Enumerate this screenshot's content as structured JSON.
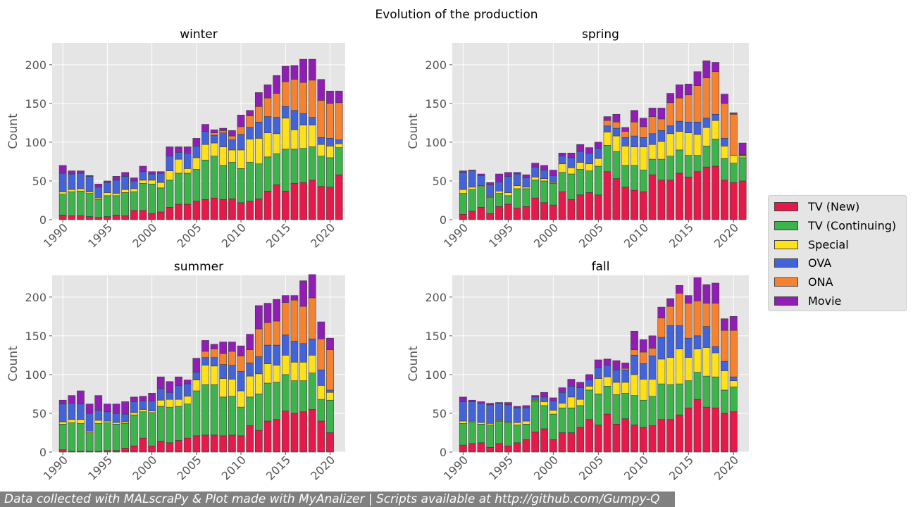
{
  "figure": {
    "title": "Evolution of the production",
    "footer": "Data collected with MALscraPy & Plot made with MyAnalizer | Scripts available at http://github.com/Gumpy-Q"
  },
  "series_meta": [
    {
      "name": "TV (New)",
      "color": "#e6194b"
    },
    {
      "name": "TV (Continuing)",
      "color": "#3cb44b"
    },
    {
      "name": "Special",
      "color": "#ffe119"
    },
    {
      "name": "OVA",
      "color": "#4363d8"
    },
    {
      "name": "ONA",
      "color": "#f58231"
    },
    {
      "name": "Movie",
      "color": "#911eb4"
    }
  ],
  "chart_data": [
    {
      "type": "bar",
      "stacked": true,
      "title": "winter",
      "xlabel": "",
      "ylabel": "Count",
      "ylim": [
        0,
        228
      ],
      "xlim": [
        1988.8,
        2021.7
      ],
      "xticks": [
        1990,
        1995,
        2000,
        2005,
        2010,
        2015,
        2020
      ],
      "yticks": [
        0,
        50,
        100,
        150,
        200
      ],
      "grid": true,
      "x": [
        1990,
        1991,
        1992,
        1993,
        1994,
        1995,
        1996,
        1997,
        1998,
        1999,
        2000,
        2001,
        2002,
        2003,
        2004,
        2005,
        2006,
        2007,
        2008,
        2009,
        2010,
        2011,
        2012,
        2013,
        2014,
        2015,
        2016,
        2017,
        2018,
        2019,
        2020,
        2021
      ],
      "series": [
        {
          "name": "TV (New)",
          "values": [
            6,
            5,
            5,
            4,
            3,
            4,
            6,
            5,
            12,
            12,
            8,
            10,
            16,
            20,
            20,
            24,
            26,
            28,
            26,
            27,
            22,
            24,
            27,
            37,
            45,
            37,
            47,
            48,
            51,
            43,
            42,
            58
          ]
        },
        {
          "name": "TV (Continuing)",
          "values": [
            27,
            31,
            32,
            30,
            23,
            27,
            25,
            30,
            24,
            35,
            38,
            31,
            35,
            40,
            40,
            41,
            51,
            54,
            44,
            47,
            44,
            50,
            45,
            44,
            40,
            54,
            44,
            44,
            43,
            39,
            38,
            35
          ]
        },
        {
          "name": "Special",
          "values": [
            3,
            3,
            3,
            2,
            2,
            4,
            3,
            4,
            4,
            4,
            5,
            7,
            12,
            18,
            6,
            15,
            20,
            17,
            24,
            16,
            24,
            30,
            33,
            31,
            26,
            40,
            25,
            30,
            28,
            15,
            15,
            5
          ]
        },
        {
          "name": "OVA",
          "values": [
            24,
            20,
            20,
            20,
            14,
            13,
            17,
            17,
            10,
            11,
            8,
            12,
            19,
            9,
            20,
            15,
            17,
            10,
            18,
            13,
            20,
            15,
            21,
            21,
            21,
            15,
            25,
            15,
            10,
            9,
            10,
            5
          ]
        },
        {
          "name": "ONA",
          "values": [
            0,
            0,
            0,
            0,
            0,
            0,
            0,
            0,
            0,
            0,
            0,
            0,
            0,
            0,
            0,
            0,
            0,
            3,
            3,
            5,
            10,
            15,
            20,
            24,
            31,
            32,
            40,
            40,
            48,
            48,
            45,
            48
          ]
        },
        {
          "name": "Movie",
          "values": [
            10,
            4,
            3,
            1,
            4,
            2,
            5,
            5,
            4,
            7,
            3,
            2,
            12,
            7,
            8,
            10,
            9,
            4,
            3,
            7,
            15,
            7,
            18,
            17,
            23,
            20,
            18,
            30,
            27,
            27,
            16,
            15
          ]
        }
      ]
    },
    {
      "type": "bar",
      "stacked": true,
      "title": "spring",
      "xlabel": "",
      "ylabel": "Count",
      "ylim": [
        0,
        228
      ],
      "xlim": [
        1988.8,
        2021.7
      ],
      "xticks": [
        1990,
        1995,
        2000,
        2005,
        2010,
        2015,
        2020
      ],
      "yticks": [
        0,
        50,
        100,
        150,
        200
      ],
      "grid": true,
      "x": [
        1990,
        1991,
        1992,
        1993,
        1994,
        1995,
        1996,
        1997,
        1998,
        1999,
        2000,
        2001,
        2002,
        2003,
        2004,
        2005,
        2006,
        2007,
        2008,
        2009,
        2010,
        2011,
        2012,
        2013,
        2014,
        2015,
        2016,
        2017,
        2018,
        2019,
        2020,
        2021
      ],
      "series": [
        {
          "name": "TV (New)",
          "values": [
            7,
            11,
            16,
            8,
            17,
            20,
            15,
            17,
            28,
            22,
            19,
            36,
            26,
            32,
            35,
            32,
            62,
            53,
            42,
            38,
            36,
            58,
            51,
            51,
            60,
            55,
            62,
            68,
            69,
            51,
            48,
            50
          ]
        },
        {
          "name": "TV (Continuing)",
          "values": [
            27,
            28,
            27,
            21,
            17,
            11,
            25,
            23,
            23,
            28,
            28,
            25,
            33,
            33,
            28,
            37,
            34,
            35,
            28,
            32,
            28,
            20,
            27,
            31,
            30,
            28,
            21,
            27,
            35,
            28,
            25,
            30
          ]
        },
        {
          "name": "Special",
          "values": [
            5,
            3,
            1,
            1,
            3,
            4,
            4,
            2,
            4,
            3,
            1,
            11,
            8,
            9,
            9,
            10,
            17,
            20,
            25,
            24,
            30,
            19,
            23,
            29,
            24,
            29,
            27,
            24,
            24,
            16,
            10,
            2
          ]
        },
        {
          "name": "OVA",
          "values": [
            22,
            21,
            13,
            15,
            12,
            21,
            15,
            12,
            13,
            11,
            9,
            10,
            13,
            14,
            14,
            13,
            8,
            10,
            11,
            14,
            12,
            14,
            14,
            10,
            13,
            14,
            16,
            12,
            8,
            10,
            0,
            2
          ]
        },
        {
          "name": "ONA",
          "values": [
            0,
            0,
            0,
            0,
            0,
            0,
            0,
            0,
            0,
            0,
            0,
            0,
            0,
            0,
            0,
            0,
            7,
            8,
            8,
            18,
            14,
            22,
            15,
            30,
            30,
            35,
            47,
            52,
            55,
            45,
            53,
            0
          ]
        },
        {
          "name": "Movie",
          "values": [
            2,
            1,
            2,
            3,
            10,
            5,
            2,
            4,
            5,
            6,
            7,
            4,
            6,
            9,
            7,
            8,
            5,
            10,
            5,
            15,
            11,
            11,
            14,
            12,
            17,
            14,
            18,
            22,
            12,
            12,
            2,
            15
          ]
        }
      ]
    },
    {
      "type": "bar",
      "stacked": true,
      "title": "summer",
      "xlabel": "",
      "ylabel": "Count",
      "ylim": [
        0,
        228
      ],
      "xlim": [
        1988.8,
        2021.7
      ],
      "xticks": [
        1990,
        1995,
        2000,
        2005,
        2010,
        2015,
        2020
      ],
      "yticks": [
        0,
        50,
        100,
        150,
        200
      ],
      "grid": true,
      "x": [
        1990,
        1991,
        1992,
        1993,
        1994,
        1995,
        1996,
        1997,
        1998,
        1999,
        2000,
        2001,
        2002,
        2003,
        2004,
        2005,
        2006,
        2007,
        2008,
        2009,
        2010,
        2011,
        2012,
        2013,
        2014,
        2015,
        2016,
        2017,
        2018,
        2019,
        2020,
        2021
      ],
      "series": [
        {
          "name": "TV (New)",
          "values": [
            3,
            1,
            1,
            1,
            1,
            2,
            2,
            5,
            8,
            18,
            8,
            14,
            12,
            15,
            18,
            21,
            22,
            22,
            21,
            22,
            21,
            34,
            28,
            40,
            42,
            53,
            50,
            52,
            55,
            40,
            25,
            0
          ]
        },
        {
          "name": "TV (Continuing)",
          "values": [
            33,
            37,
            36,
            24,
            36,
            36,
            34,
            32,
            40,
            34,
            43,
            45,
            46,
            44,
            44,
            58,
            65,
            65,
            50,
            50,
            37,
            37,
            47,
            49,
            48,
            47,
            42,
            40,
            47,
            28,
            42,
            0
          ]
        },
        {
          "name": "Special",
          "values": [
            3,
            4,
            5,
            2,
            4,
            2,
            2,
            2,
            3,
            3,
            2,
            8,
            10,
            9,
            10,
            14,
            25,
            24,
            24,
            22,
            21,
            27,
            26,
            25,
            22,
            25,
            24,
            24,
            23,
            18,
            10,
            0
          ]
        },
        {
          "name": "OVA",
          "values": [
            23,
            21,
            20,
            23,
            13,
            12,
            12,
            10,
            14,
            11,
            13,
            15,
            9,
            18,
            16,
            10,
            10,
            11,
            18,
            18,
            25,
            17,
            22,
            24,
            26,
            26,
            27,
            24,
            21,
            20,
            3,
            0
          ]
        },
        {
          "name": "ONA",
          "values": [
            0,
            0,
            0,
            0,
            0,
            0,
            0,
            0,
            0,
            0,
            0,
            0,
            0,
            0,
            0,
            0,
            8,
            11,
            14,
            18,
            20,
            17,
            36,
            29,
            31,
            42,
            53,
            48,
            53,
            40,
            52,
            0
          ]
        },
        {
          "name": "Movie",
          "values": [
            5,
            10,
            17,
            12,
            19,
            10,
            12,
            16,
            6,
            6,
            10,
            15,
            14,
            11,
            5,
            18,
            14,
            6,
            15,
            12,
            13,
            20,
            30,
            25,
            28,
            9,
            6,
            33,
            30,
            22,
            15,
            0
          ]
        }
      ]
    },
    {
      "type": "bar",
      "stacked": true,
      "title": "fall",
      "xlabel": "",
      "ylabel": "Count",
      "ylim": [
        0,
        228
      ],
      "xlim": [
        1988.8,
        2021.7
      ],
      "xticks": [
        1990,
        1995,
        2000,
        2005,
        2010,
        2015,
        2020
      ],
      "yticks": [
        0,
        50,
        100,
        150,
        200
      ],
      "grid": true,
      "x": [
        1990,
        1991,
        1992,
        1993,
        1994,
        1995,
        1996,
        1997,
        1998,
        1999,
        2000,
        2001,
        2002,
        2003,
        2004,
        2005,
        2006,
        2007,
        2008,
        2009,
        2010,
        2011,
        2012,
        2013,
        2014,
        2015,
        2016,
        2017,
        2018,
        2019,
        2020,
        2021
      ],
      "series": [
        {
          "name": "TV (New)",
          "values": [
            9,
            11,
            12,
            6,
            11,
            8,
            12,
            16,
            26,
            30,
            16,
            25,
            25,
            32,
            42,
            35,
            49,
            36,
            43,
            35,
            32,
            34,
            42,
            42,
            48,
            57,
            68,
            58,
            57,
            50,
            52,
            0
          ]
        },
        {
          "name": "TV (Continuing)",
          "values": [
            28,
            28,
            24,
            29,
            29,
            30,
            23,
            20,
            40,
            30,
            33,
            32,
            32,
            28,
            38,
            40,
            36,
            38,
            33,
            38,
            35,
            38,
            46,
            45,
            40,
            35,
            35,
            40,
            40,
            30,
            32,
            0
          ]
        },
        {
          "name": "Special",
          "values": [
            3,
            1,
            2,
            2,
            1,
            1,
            3,
            4,
            1,
            5,
            5,
            6,
            14,
            8,
            5,
            20,
            12,
            16,
            14,
            27,
            27,
            22,
            32,
            35,
            45,
            30,
            30,
            37,
            31,
            25,
            8,
            0
          ]
        },
        {
          "name": "OVA",
          "values": [
            25,
            25,
            25,
            24,
            22,
            22,
            19,
            17,
            4,
            6,
            12,
            14,
            14,
            15,
            8,
            14,
            15,
            16,
            16,
            25,
            20,
            30,
            28,
            41,
            30,
            25,
            17,
            27,
            8,
            12,
            5,
            0
          ]
        },
        {
          "name": "ONA",
          "values": [
            0,
            0,
            0,
            0,
            0,
            0,
            0,
            0,
            0,
            0,
            0,
            0,
            0,
            0,
            0,
            0,
            0,
            0,
            2,
            7,
            15,
            10,
            25,
            25,
            42,
            45,
            45,
            30,
            56,
            40,
            60,
            0
          ]
        },
        {
          "name": "Movie",
          "values": [
            6,
            2,
            2,
            2,
            1,
            3,
            2,
            3,
            2,
            6,
            4,
            6,
            9,
            7,
            7,
            10,
            8,
            12,
            7,
            24,
            16,
            16,
            14,
            10,
            10,
            10,
            30,
            24,
            26,
            15,
            18,
            0
          ]
        }
      ]
    }
  ]
}
